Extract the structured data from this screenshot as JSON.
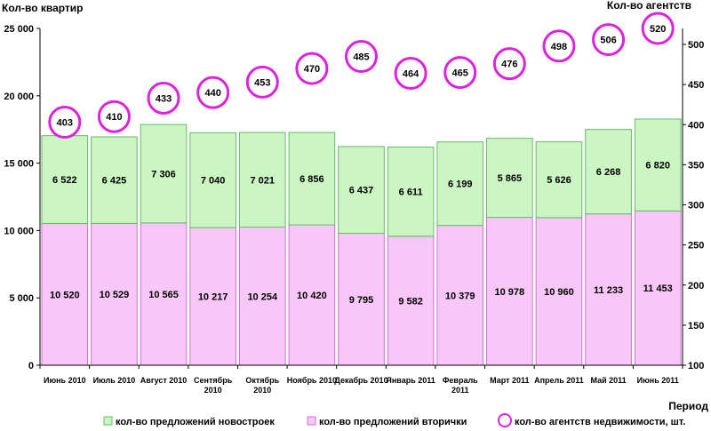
{
  "chart_data": {
    "type": "bar",
    "stacked": true,
    "categories": [
      [
        "Июнь 2010"
      ],
      [
        "Июль 2010"
      ],
      [
        "Август 2010"
      ],
      [
        "Сентябрь",
        "2010"
      ],
      [
        "Октябрь",
        "2010"
      ],
      [
        "Ноябрь 2010"
      ],
      [
        "Декабрь 2010"
      ],
      [
        "Январь 2011"
      ],
      [
        "Февраль",
        "2011"
      ],
      [
        "Март 2011"
      ],
      [
        "Апрель 2011"
      ],
      [
        "Май 2011"
      ],
      [
        "Июнь 2011"
      ]
    ],
    "series": [
      {
        "name": "кол-во предложений вторички",
        "axis": "left",
        "color": "#f7c8f7",
        "stroke": "#d070d0",
        "values": [
          10520,
          10529,
          10565,
          10217,
          10254,
          10420,
          9795,
          9582,
          10379,
          10978,
          10960,
          11233,
          11453
        ],
        "labels": [
          "10 520",
          "10 529",
          "10 565",
          "10 217",
          "10 254",
          "10 420",
          "9 795",
          "9 582",
          "10 379",
          "10 978",
          "10 960",
          "11 233",
          "11 453"
        ]
      },
      {
        "name": "кол-во предложений новостроек",
        "axis": "left",
        "color": "#ccf5c4",
        "stroke": "#66bb66",
        "values": [
          6522,
          6425,
          7306,
          7040,
          7021,
          6856,
          6437,
          6611,
          6199,
          5865,
          5626,
          6268,
          6820
        ],
        "labels": [
          "6 522",
          "6 425",
          "7 306",
          "7 040",
          "7 021",
          "6 856",
          "6 437",
          "6 611",
          "6 199",
          "5 865",
          "5 626",
          "6 268",
          "6 820"
        ]
      },
      {
        "name": "кол-во агентств недвижимости, шт.",
        "axis": "right",
        "type": "marker",
        "color": "#dd22dd",
        "values": [
          403,
          410,
          433,
          440,
          453,
          470,
          485,
          464,
          465,
          476,
          498,
          506,
          520
        ]
      }
    ],
    "ylabel_left": "Кол-во квартир",
    "ylabel_right": "Кол-во агентств",
    "xlabel": "Период",
    "ylim_left": [
      0,
      25000
    ],
    "yticks_left": [
      "0",
      "5 000",
      "10 000",
      "15 000",
      "20 000",
      "25 000"
    ],
    "ylim_right": [
      100,
      500
    ],
    "yticks_right": [
      "100",
      "150",
      "200",
      "250",
      "300",
      "350",
      "400",
      "450",
      "500"
    ],
    "grid": false,
    "legend_position": "bottom"
  }
}
